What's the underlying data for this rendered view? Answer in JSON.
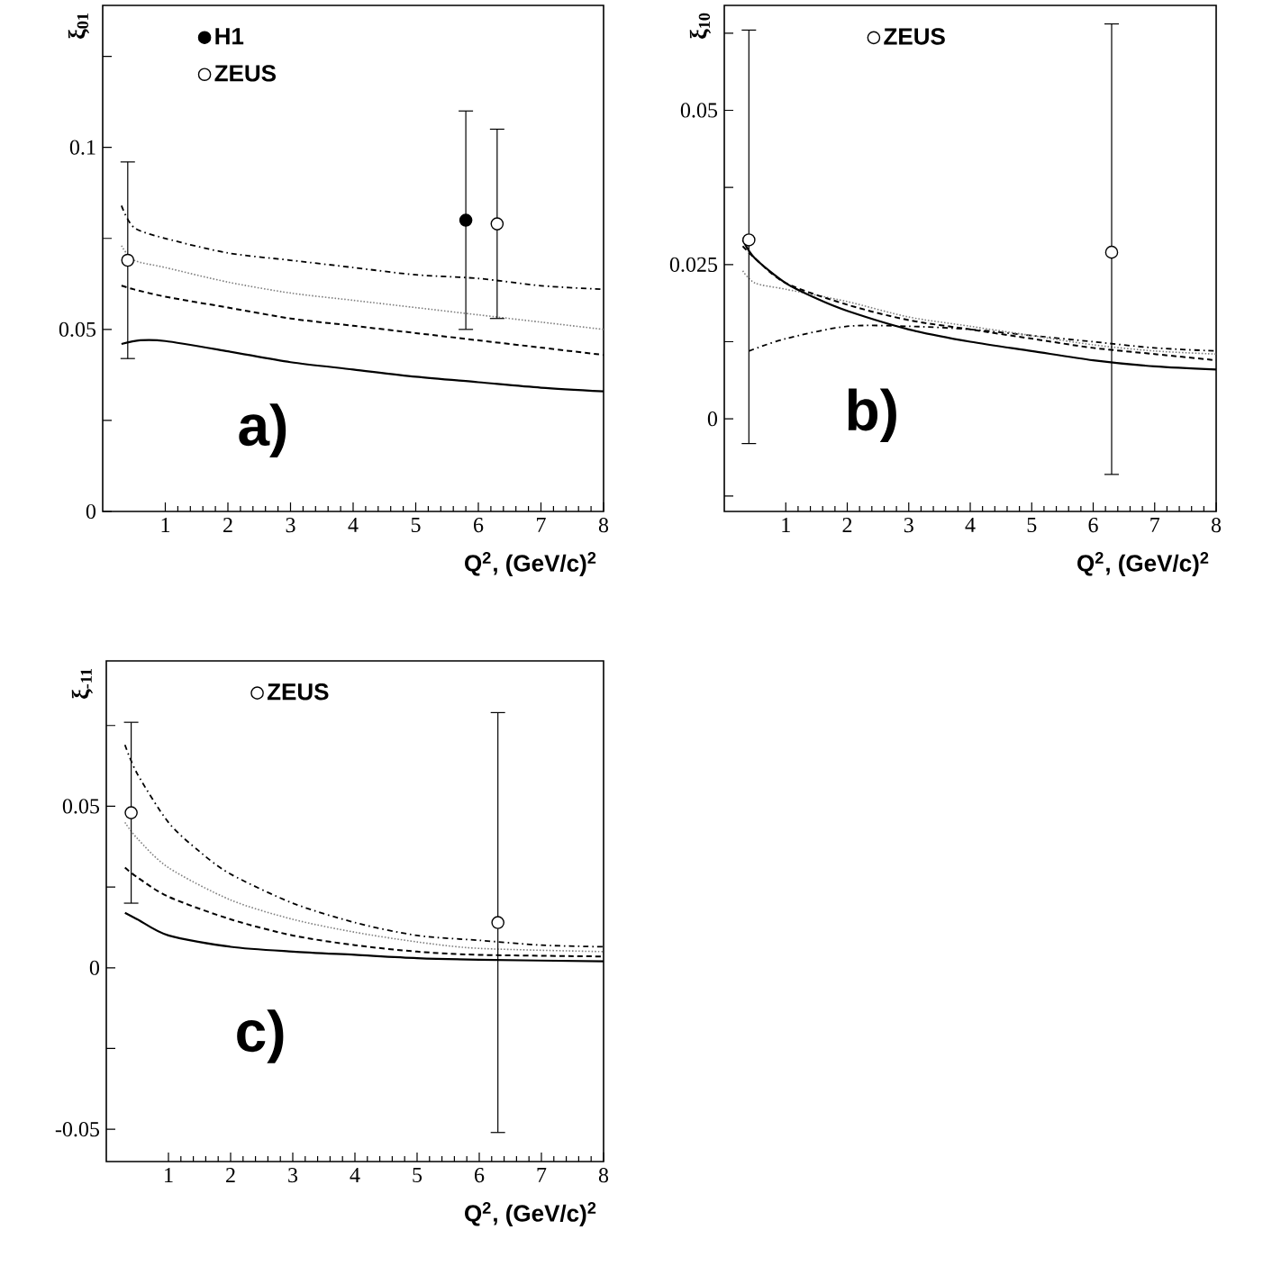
{
  "chart_data": [
    {
      "type": "line",
      "xlabel": "Q$^{2}$,  (GeV/c)$^{2}$",
      "ylabel": "ξ$_{01}$",
      "xlim": [
        0,
        8
      ],
      "ylim": [
        0,
        0.139
      ],
      "xticks": [
        1,
        2,
        3,
        4,
        5,
        6,
        7,
        8
      ],
      "yticks": [
        0,
        {
          "value": 0.025,
          "label": null
        },
        0.05,
        {
          "value": 0.075,
          "label": null
        },
        0.1,
        {
          "value": 0.125,
          "label": null
        }
      ],
      "legend": "top left",
      "annotations": [
        "a)"
      ],
      "series": [
        {
          "type": "line",
          "line_style": "dashdot",
          "color": "#000000",
          "x": [
            0.3,
            0.5,
            1,
            2,
            3,
            4,
            5,
            6,
            7,
            8
          ],
          "values": [
            0.084,
            0.078,
            0.075,
            0.071,
            0.069,
            0.067,
            0.065,
            0.064,
            0.062,
            0.061
          ]
        },
        {
          "type": "line",
          "line_style": "dotted",
          "color": "#808080",
          "x": [
            0.3,
            0.5,
            1,
            2,
            3,
            4,
            5,
            6,
            7,
            8
          ],
          "values": [
            0.073,
            0.069,
            0.067,
            0.063,
            0.06,
            0.058,
            0.056,
            0.054,
            0.052,
            0.05
          ]
        },
        {
          "type": "line",
          "line_style": "dashed",
          "color": "#000000",
          "x": [
            0.3,
            0.5,
            1,
            2,
            3,
            4,
            5,
            6,
            7,
            8
          ],
          "values": [
            0.062,
            0.061,
            0.059,
            0.056,
            0.053,
            0.051,
            0.049,
            0.047,
            0.045,
            0.043
          ]
        },
        {
          "type": "line",
          "line_style": "solid",
          "color": "#000000",
          "x": [
            0.3,
            0.6,
            1,
            2,
            3,
            4,
            5,
            6,
            7,
            8
          ],
          "values": [
            0.046,
            0.047,
            0.0468,
            0.044,
            0.041,
            0.039,
            0.037,
            0.0355,
            0.034,
            0.033
          ]
        },
        {
          "type": "scatter",
          "name": "H1",
          "marker": "circle",
          "color": "#000000",
          "x": [
            5.8
          ],
          "values": [
            0.08
          ],
          "errors": [
            [
              0.05,
              0.11
            ]
          ]
        },
        {
          "type": "scatter",
          "name": "ZEUS",
          "marker": "circle",
          "color": "#ffffff",
          "x": [
            0.4,
            6.3
          ],
          "values": [
            0.069,
            0.079
          ],
          "errors": [
            [
              0.042,
              0.096
            ],
            [
              0.053,
              0.105
            ]
          ]
        }
      ]
    },
    {
      "type": "line",
      "xlabel": "Q$^{2}$,  (GeV/c)$^{2}$",
      "ylabel": "ξ$_{10}$",
      "xlim": [
        0,
        8
      ],
      "ylim": [
        -0.015,
        0.067
      ],
      "xticks": [
        1,
        2,
        3,
        4,
        5,
        6,
        7,
        8
      ],
      "yticks": [
        {
          "value": -0.0125,
          "label": null
        },
        0,
        {
          "value": 0.0125,
          "label": null
        },
        0.025,
        {
          "value": 0.0375,
          "label": null
        },
        0.05,
        {
          "value": 0.0625,
          "label": null
        }
      ],
      "legend": "top",
      "annotations": [
        "b)"
      ],
      "series": [
        {
          "type": "line",
          "line_style": "dashdot",
          "color": "#000000",
          "x": [
            0.4,
            1,
            2,
            3,
            4,
            5,
            6,
            7,
            8
          ],
          "values": [
            0.011,
            0.013,
            0.015,
            0.015,
            0.0145,
            0.0135,
            0.0125,
            0.0115,
            0.011
          ]
        },
        {
          "type": "line",
          "line_style": "dotted",
          "color": "#808080",
          "x": [
            0.3,
            0.5,
            1,
            2,
            3,
            4,
            5,
            6,
            7,
            8
          ],
          "values": [
            0.024,
            0.022,
            0.021,
            0.019,
            0.0165,
            0.015,
            0.0135,
            0.012,
            0.011,
            0.0105
          ]
        },
        {
          "type": "line",
          "line_style": "dashed",
          "color": "#000000",
          "x": [
            0.3,
            0.5,
            1,
            2,
            3,
            4,
            5,
            6,
            7,
            8
          ],
          "values": [
            0.028,
            0.026,
            0.022,
            0.0185,
            0.016,
            0.0145,
            0.013,
            0.0115,
            0.0105,
            0.0095
          ]
        },
        {
          "type": "line",
          "line_style": "solid",
          "color": "#000000",
          "x": [
            0.3,
            0.5,
            1,
            1.5,
            2,
            3,
            4,
            5,
            6,
            7,
            8
          ],
          "values": [
            0.029,
            0.026,
            0.022,
            0.0195,
            0.0175,
            0.0145,
            0.0125,
            0.011,
            0.0095,
            0.0085,
            0.008
          ]
        },
        {
          "type": "scatter",
          "name": "ZEUS",
          "marker": "circle",
          "color": "#ffffff",
          "x": [
            0.4,
            6.3
          ],
          "values": [
            0.029,
            0.027
          ],
          "errors": [
            [
              -0.004,
              0.063
            ],
            [
              -0.009,
              0.064
            ]
          ]
        }
      ]
    },
    {
      "type": "line",
      "xlabel": "Q$^{2}$,  (GeV/c)$^{2}$",
      "ylabel": "ξ$_{-11}$",
      "xlim": [
        0,
        8
      ],
      "ylim": [
        -0.06,
        0.095
      ],
      "xticks": [
        1,
        2,
        3,
        4,
        5,
        6,
        7,
        8
      ],
      "yticks": [
        -0.05,
        {
          "value": -0.025,
          "label": null
        },
        0,
        {
          "value": 0.025,
          "label": null
        },
        0.05,
        {
          "value": 0.075,
          "label": null
        }
      ],
      "legend": "top",
      "annotations": [
        "c)"
      ],
      "series": [
        {
          "type": "line",
          "line_style": "dashdot",
          "color": "#000000",
          "x": [
            0.3,
            0.5,
            1,
            1.5,
            2,
            3,
            4,
            5,
            6,
            7,
            8
          ],
          "values": [
            0.069,
            0.06,
            0.045,
            0.036,
            0.029,
            0.02,
            0.014,
            0.01,
            0.0085,
            0.007,
            0.0065
          ]
        },
        {
          "type": "line",
          "line_style": "dotted",
          "color": "#808080",
          "x": [
            0.3,
            0.5,
            1,
            2,
            3,
            4,
            5,
            6,
            8
          ],
          "values": [
            0.045,
            0.04,
            0.031,
            0.021,
            0.015,
            0.011,
            0.008,
            0.006,
            0.005
          ]
        },
        {
          "type": "line",
          "line_style": "dashed",
          "color": "#000000",
          "x": [
            0.3,
            0.5,
            1,
            2,
            3,
            4,
            5,
            6,
            8
          ],
          "values": [
            0.031,
            0.028,
            0.022,
            0.015,
            0.01,
            0.007,
            0.005,
            0.004,
            0.0035
          ]
        },
        {
          "type": "line",
          "line_style": "solid",
          "color": "#000000",
          "x": [
            0.3,
            0.5,
            1,
            2,
            3,
            4,
            5,
            6,
            8
          ],
          "values": [
            0.017,
            0.015,
            0.01,
            0.0065,
            0.005,
            0.004,
            0.003,
            0.0025,
            0.002
          ]
        },
        {
          "type": "scatter",
          "name": "ZEUS",
          "marker": "circle",
          "color": "#ffffff",
          "x": [
            0.4,
            6.3
          ],
          "values": [
            0.048,
            0.014
          ],
          "errors": [
            [
              0.02,
              0.076
            ],
            [
              -0.051,
              0.079
            ]
          ]
        }
      ]
    }
  ]
}
